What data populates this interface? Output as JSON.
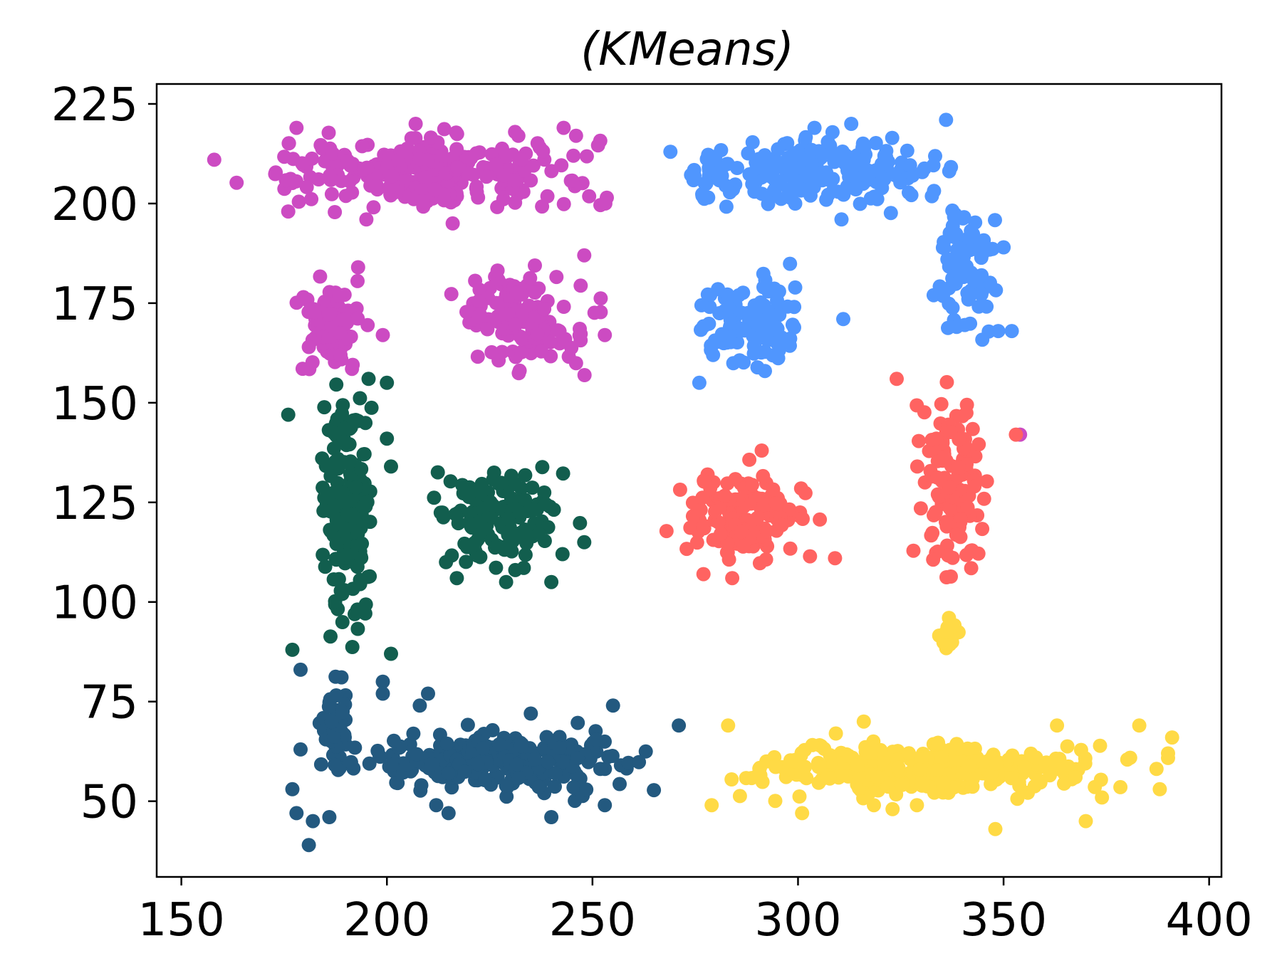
{
  "chart_data": {
    "type": "scatter",
    "title": "(KMeans)",
    "xlabel": "",
    "ylabel": "",
    "xlim": [
      144,
      403
    ],
    "ylim": [
      31,
      230
    ],
    "x_ticks": [
      150,
      200,
      250,
      300,
      350,
      400
    ],
    "y_ticks": [
      50,
      75,
      100,
      125,
      150,
      175,
      200,
      225
    ],
    "grid": false,
    "legend": "none",
    "series": [
      {
        "color": "#cc4bc2",
        "regions": [
          {
            "x": [
              158,
              264
            ],
            "y": [
              196,
              220
            ],
            "count": 260
          },
          {
            "x": [
              177,
              196
            ],
            "y": [
              155,
              184
            ],
            "count": 85
          },
          {
            "x": [
              213,
              252
            ],
            "y": [
              156,
              187
            ],
            "count": 130
          }
        ],
        "points": [
          [
            158,
            211
          ],
          [
            178,
            219
          ],
          [
            193,
            184
          ],
          [
            207,
            220
          ],
          [
            243,
            219
          ],
          [
            176,
            198
          ],
          [
            195,
            196
          ],
          [
            216,
            195
          ],
          [
            354,
            142
          ],
          [
            199,
            167
          ],
          [
            181,
            164
          ],
          [
            248,
            187
          ],
          [
            253,
            167
          ]
        ]
      },
      {
        "color": "#5096fe",
        "regions": [
          {
            "x": [
              263,
              345
            ],
            "y": [
              196,
              220
            ],
            "count": 210
          },
          {
            "x": [
              332,
              350
            ],
            "y": [
              162,
              206
            ],
            "count": 80
          },
          {
            "x": [
              272,
              305
            ],
            "y": [
              155,
              185
            ],
            "count": 115
          }
        ],
        "points": [
          [
            336,
            221
          ],
          [
            350,
            189
          ],
          [
            352,
            168
          ],
          [
            311,
            171
          ],
          [
            276,
            155
          ],
          [
            333,
            177
          ],
          [
            304,
            219
          ]
        ]
      },
      {
        "color": "#ff6361",
        "regions": [
          {
            "x": [
              327,
              348
            ],
            "y": [
              101,
              159
            ],
            "count": 120
          },
          {
            "x": [
              268,
              307
            ],
            "y": [
              106,
              138
            ],
            "count": 140
          }
        ],
        "points": [
          [
            353,
            142
          ],
          [
            324,
            156
          ],
          [
            329,
            134
          ],
          [
            309,
            111
          ],
          [
            277,
            107
          ],
          [
            284,
            106
          ]
        ]
      },
      {
        "color": "#125e4e",
        "regions": [
          {
            "x": [
              183,
              198
            ],
            "y": [
              87,
              156
            ],
            "count": 175
          },
          {
            "x": [
              209,
              247
            ],
            "y": [
              105,
              137
            ],
            "count": 140
          }
        ],
        "points": [
          [
            176,
            147
          ],
          [
            200,
            155
          ],
          [
            200,
            141
          ],
          [
            201,
            134
          ],
          [
            177,
            88
          ],
          [
            201,
            87
          ],
          [
            248,
            115
          ],
          [
            217,
            106
          ],
          [
            229,
            105
          ],
          [
            240,
            105
          ]
        ]
      },
      {
        "color": "#23597f",
        "regions": [
          {
            "x": [
              184,
              274
            ],
            "y": [
              50,
              70
            ],
            "count": 270
          },
          {
            "x": [
              183,
              192
            ],
            "y": [
              55,
              85
            ],
            "count": 50
          }
        ],
        "points": [
          [
            181,
            39
          ],
          [
            178,
            47
          ],
          [
            182,
            45
          ],
          [
            186,
            46
          ],
          [
            177,
            53
          ],
          [
            179,
            63
          ],
          [
            179,
            83
          ],
          [
            199,
            80
          ],
          [
            199,
            77
          ],
          [
            208,
            74
          ],
          [
            210,
            77
          ],
          [
            240,
            46
          ],
          [
            253,
            49
          ],
          [
            212,
            49
          ],
          [
            215,
            47
          ],
          [
            271,
            69
          ],
          [
            255,
            74
          ],
          [
            235,
            72
          ]
        ]
      },
      {
        "color": "#ffda45",
        "regions": [
          {
            "x": [
              275,
              390
            ],
            "y": [
              49,
              67
            ],
            "count": 300
          },
          {
            "x": [
              333,
              341
            ],
            "y": [
              86,
              96
            ],
            "count": 18
          }
        ],
        "points": [
          [
            370,
            45
          ],
          [
            348,
            43
          ],
          [
            301,
            47
          ],
          [
            323,
            48
          ],
          [
            279,
            49
          ],
          [
            363,
            69
          ],
          [
            383,
            69
          ],
          [
            316,
            70
          ],
          [
            283,
            69
          ],
          [
            391,
            66
          ],
          [
            388,
            53
          ],
          [
            390,
            62
          ]
        ]
      }
    ]
  }
}
